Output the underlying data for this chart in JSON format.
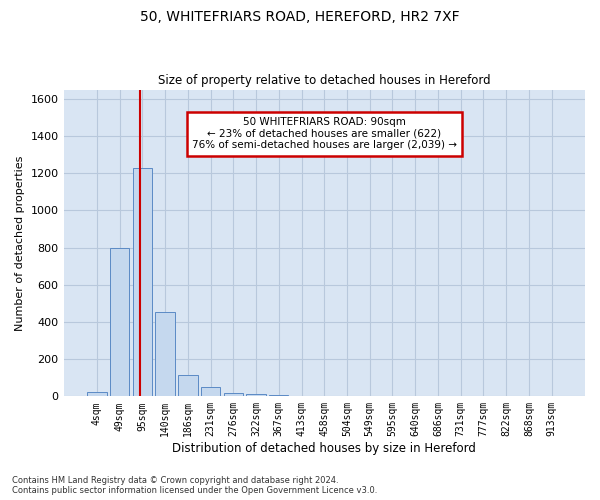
{
  "title1": "50, WHITEFRIARS ROAD, HEREFORD, HR2 7XF",
  "title2": "Size of property relative to detached houses in Hereford",
  "xlabel": "Distribution of detached houses by size in Hereford",
  "ylabel": "Number of detached properties",
  "footnote": "Contains HM Land Registry data © Crown copyright and database right 2024.\nContains public sector information licensed under the Open Government Licence v3.0.",
  "bar_labels": [
    "4sqm",
    "49sqm",
    "95sqm",
    "140sqm",
    "186sqm",
    "231sqm",
    "276sqm",
    "322sqm",
    "367sqm",
    "413sqm",
    "458sqm",
    "504sqm",
    "549sqm",
    "595sqm",
    "640sqm",
    "686sqm",
    "731sqm",
    "777sqm",
    "822sqm",
    "868sqm",
    "913sqm"
  ],
  "bar_values": [
    25,
    800,
    1230,
    455,
    115,
    50,
    20,
    12,
    8,
    0,
    0,
    0,
    0,
    0,
    0,
    0,
    0,
    0,
    0,
    0,
    0
  ],
  "bar_color": "#c5d8ee",
  "bar_edge_color": "#5b8ac5",
  "grid_color": "#b8c8dc",
  "bg_color": "#d9e5f3",
  "marker_color": "#cc0000",
  "annotation_text": "50 WHITEFRIARS ROAD: 90sqm\n← 23% of detached houses are smaller (622)\n76% of semi-detached houses are larger (2,039) →",
  "annotation_box_color": "#ffffff",
  "annotation_border_color": "#cc0000",
  "ylim": [
    0,
    1650
  ],
  "yticks": [
    0,
    200,
    400,
    600,
    800,
    1000,
    1200,
    1400,
    1600
  ]
}
